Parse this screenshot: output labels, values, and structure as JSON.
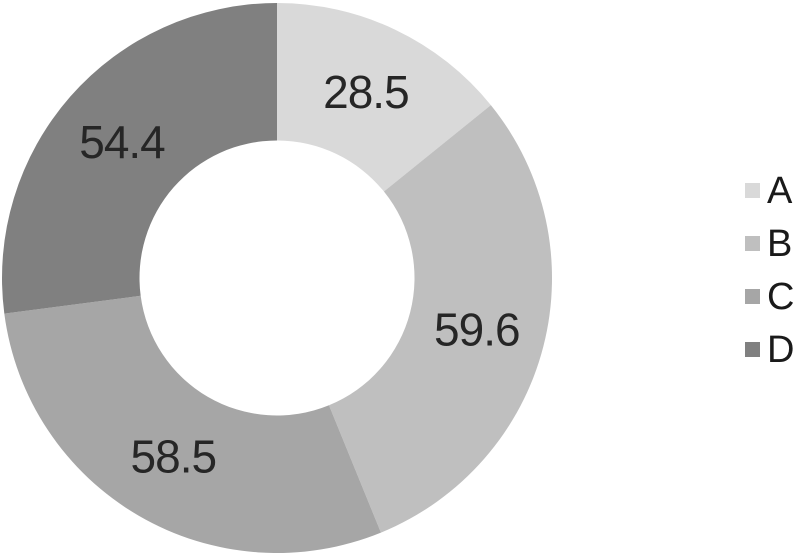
{
  "chart_data": {
    "type": "pie",
    "subtype": "donut",
    "title": "",
    "categories": [
      "A",
      "B",
      "C",
      "D"
    ],
    "values": [
      28.5,
      59.6,
      58.5,
      54.4
    ],
    "data_labels": [
      "28.5",
      "59.6",
      "58.5",
      "54.4"
    ],
    "slice_colors": [
      "#d9d9d9",
      "#bfbfbf",
      "#a6a6a6",
      "#808080"
    ],
    "label_color": "#262626",
    "background_color": "#ffffff",
    "start_angle_deg": 0,
    "direction": "clockwise",
    "inner_radius_ratio": 0.5,
    "legend_position": "right",
    "legend": [
      {
        "label": "A",
        "color": "#d9d9d9"
      },
      {
        "label": "B",
        "color": "#bfbfbf"
      },
      {
        "label": "C",
        "color": "#a6a6a6"
      },
      {
        "label": "D",
        "color": "#808080"
      }
    ]
  }
}
